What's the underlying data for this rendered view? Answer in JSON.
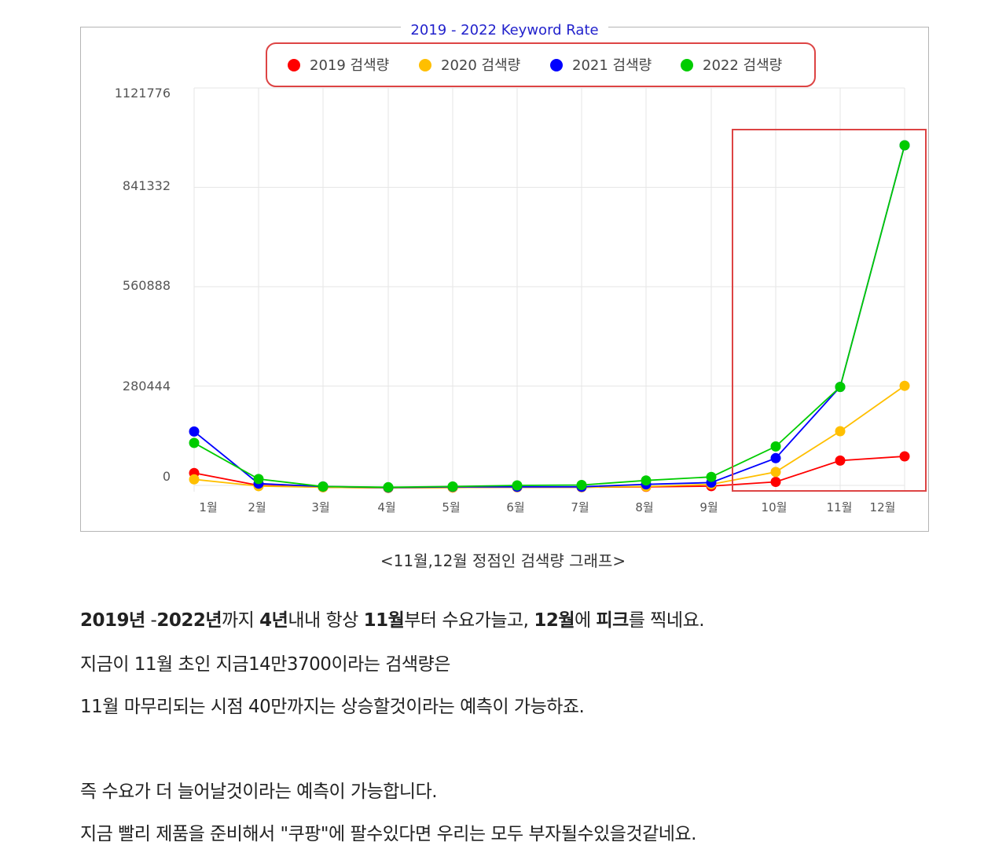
{
  "chart_data": {
    "type": "line",
    "title": "2019 - 2022 Keyword Rate",
    "categories": [
      "1월",
      "2월",
      "3월",
      "4월",
      "5월",
      "6월",
      "7월",
      "8월",
      "9월",
      "10월",
      "11월",
      "12월"
    ],
    "y_ticks": [
      "1121776",
      "841332",
      "560888",
      "280444",
      "0"
    ],
    "ylim": [
      -30000,
      1121776
    ],
    "grid": true,
    "legend_position": "top-center",
    "series": [
      {
        "name": "2019 검색량",
        "color": "#ff0000",
        "values": [
          35000,
          0,
          -5000,
          -7000,
          -6000,
          -5000,
          -5000,
          -4000,
          -2000,
          10000,
          70000,
          82000
        ]
      },
      {
        "name": "2020 검색량",
        "color": "#ffbf00",
        "values": [
          17000,
          -2000,
          -5000,
          -7000,
          -6000,
          -5000,
          -5000,
          -3000,
          3000,
          38000,
          153000,
          281000
        ]
      },
      {
        "name": "2021 검색량",
        "color": "#0000ff",
        "values": [
          152000,
          5000,
          -3000,
          -6000,
          -4000,
          -4000,
          -4000,
          3000,
          8000,
          77000,
          278000,
          960000
        ]
      },
      {
        "name": "2022 검색량",
        "color": "#00cc00",
        "values": [
          120000,
          18000,
          -3000,
          -5000,
          -3000,
          0,
          1000,
          14000,
          24000,
          110000,
          278000,
          960000
        ]
      }
    ]
  },
  "caption": "<11월,12월 정점인 검색량 그래프>",
  "paragraphs": {
    "line1": [
      {
        "text": "2019년",
        "bold": true
      },
      {
        "text": " -",
        "bold": false
      },
      {
        "text": "2022년",
        "bold": true
      },
      {
        "text": "까지 ",
        "bold": false
      },
      {
        "text": "4년",
        "bold": true
      },
      {
        "text": "내내 항상 ",
        "bold": false
      },
      {
        "text": "11월",
        "bold": true
      },
      {
        "text": "부터 수요가늘고, ",
        "bold": false
      },
      {
        "text": "12월",
        "bold": true
      },
      {
        "text": "에 ",
        "bold": false
      },
      {
        "text": "피크",
        "bold": true
      },
      {
        "text": "를 찍네요.",
        "bold": false
      }
    ],
    "line2": "지금이 11월 초인 지금14만3700이라는 검색량은",
    "line3": "11월 마무리되는 시점  40만까지는 상승할것이라는 예측이 가능하죠.",
    "line4": "즉 수요가 더 늘어날것이라는 예측이 가능합니다.",
    "line5": "지금 빨리 제품을 준비해서 \"쿠팡\"에 팔수있다면 우리는 모두 부자될수있을것같네요."
  },
  "colors": {
    "highlight": "#dd4444",
    "title_text": "#2222cc",
    "grid": "#e6e6e6"
  }
}
